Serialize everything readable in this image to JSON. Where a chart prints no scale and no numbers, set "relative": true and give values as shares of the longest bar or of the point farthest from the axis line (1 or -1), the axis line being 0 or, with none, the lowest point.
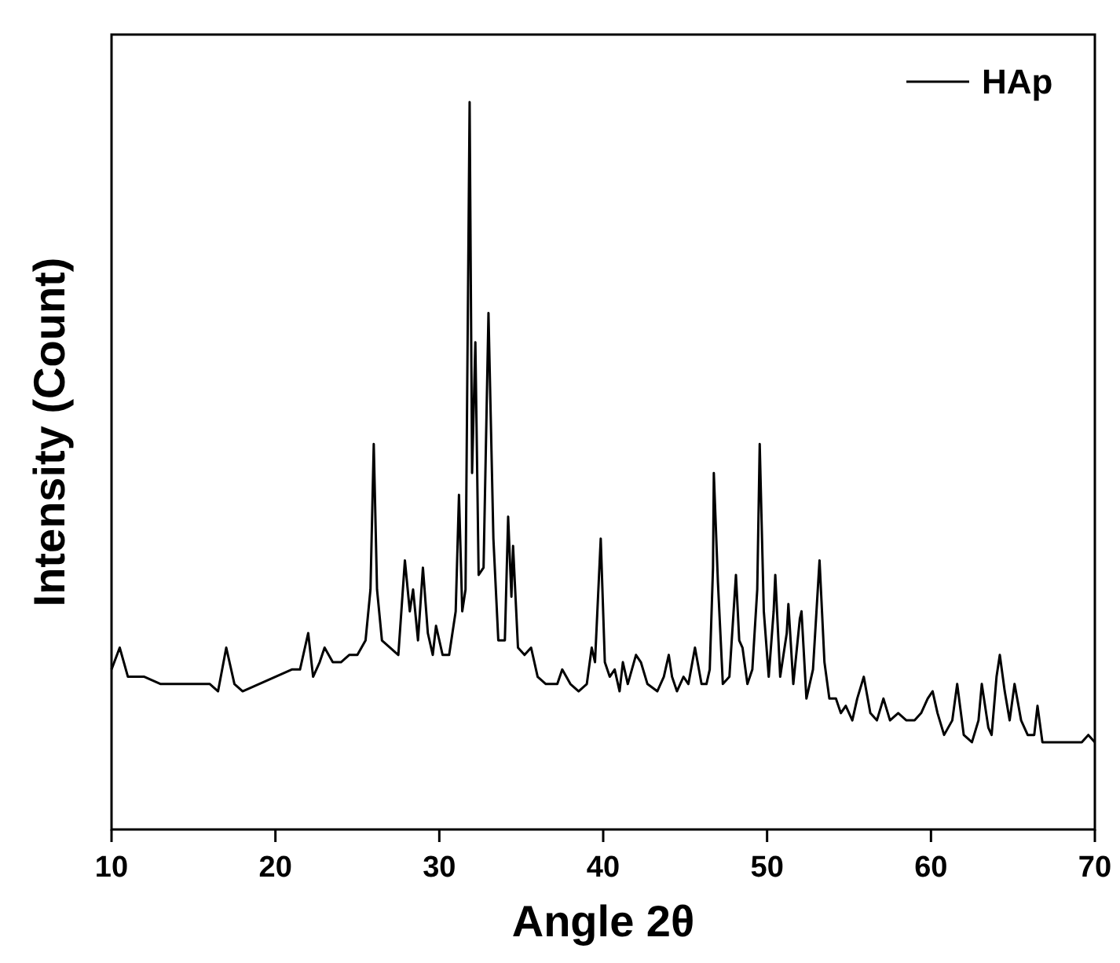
{
  "chart_data": {
    "type": "line",
    "xlabel": "Angle 2θ",
    "ylabel": "Intensity (Count)",
    "relative": true,
    "xlim": [
      10,
      70
    ],
    "xticks": [
      10,
      20,
      30,
      40,
      50,
      60,
      70
    ],
    "legend": "top right",
    "grid": false,
    "series": [
      {
        "name": "HAp",
        "color": "#000000",
        "x": [
          10.0,
          10.5,
          11.0,
          12,
          13,
          14,
          15,
          16,
          16.5,
          17,
          17.5,
          18,
          19,
          20,
          21,
          21.5,
          22,
          22.3,
          22.7,
          23,
          23.5,
          24,
          24.5,
          25,
          25.5,
          25.8,
          26.0,
          26.2,
          26.5,
          27,
          27.5,
          27.9,
          28.2,
          28.4,
          28.7,
          29.0,
          29.3,
          29.6,
          29.8,
          30.2,
          30.6,
          31.0,
          31.2,
          31.4,
          31.6,
          31.85,
          32.0,
          32.2,
          32.4,
          32.7,
          33.0,
          33.3,
          33.6,
          34.0,
          34.2,
          34.4,
          34.5,
          34.8,
          35.2,
          35.6,
          36.0,
          36.5,
          37.2,
          37.5,
          38,
          38.5,
          39,
          39.3,
          39.5,
          39.85,
          40.1,
          40.4,
          40.7,
          41.0,
          41.2,
          41.5,
          42.0,
          42.3,
          42.7,
          43.3,
          43.7,
          44.0,
          44.2,
          44.5,
          44.9,
          45.2,
          45.6,
          46.0,
          46.3,
          46.5,
          46.7,
          46.75,
          47.0,
          47.3,
          47.7,
          48.1,
          48.3,
          48.5,
          48.8,
          49.1,
          49.4,
          49.55,
          49.8,
          50.1,
          50.4,
          50.5,
          50.8,
          51.2,
          51.3,
          51.6,
          52.0,
          52.1,
          52.4,
          52.8,
          53.2,
          53.5,
          53.8,
          54.2,
          54.5,
          54.8,
          55.2,
          55.5,
          55.9,
          56.3,
          56.7,
          57.1,
          57.5,
          58,
          58.5,
          59,
          59.4,
          59.8,
          60.1,
          60.4,
          60.8,
          61.3,
          61.6,
          62,
          62.5,
          62.9,
          63.1,
          63.5,
          63.7,
          64.0,
          64.2,
          64.5,
          64.8,
          65.1,
          65.5,
          65.9,
          66.3,
          66.5,
          66.8,
          67.3,
          68,
          68.7,
          69.2,
          69.6,
          70
        ],
        "values": [
          0.22,
          0.25,
          0.21,
          0.21,
          0.2,
          0.2,
          0.2,
          0.2,
          0.19,
          0.25,
          0.2,
          0.19,
          0.2,
          0.21,
          0.22,
          0.22,
          0.27,
          0.21,
          0.23,
          0.25,
          0.23,
          0.23,
          0.24,
          0.24,
          0.26,
          0.33,
          0.53,
          0.33,
          0.26,
          0.25,
          0.24,
          0.37,
          0.3,
          0.33,
          0.26,
          0.36,
          0.27,
          0.24,
          0.28,
          0.24,
          0.24,
          0.3,
          0.46,
          0.3,
          0.33,
          1.0,
          0.49,
          0.67,
          0.35,
          0.36,
          0.71,
          0.4,
          0.26,
          0.26,
          0.43,
          0.32,
          0.39,
          0.25,
          0.24,
          0.25,
          0.21,
          0.2,
          0.2,
          0.22,
          0.2,
          0.19,
          0.2,
          0.25,
          0.23,
          0.4,
          0.23,
          0.21,
          0.22,
          0.19,
          0.23,
          0.2,
          0.24,
          0.23,
          0.2,
          0.19,
          0.21,
          0.24,
          0.21,
          0.19,
          0.21,
          0.2,
          0.25,
          0.2,
          0.2,
          0.22,
          0.36,
          0.49,
          0.34,
          0.2,
          0.21,
          0.35,
          0.26,
          0.25,
          0.2,
          0.22,
          0.33,
          0.53,
          0.3,
          0.21,
          0.3,
          0.35,
          0.21,
          0.27,
          0.31,
          0.2,
          0.29,
          0.3,
          0.18,
          0.22,
          0.37,
          0.23,
          0.18,
          0.18,
          0.16,
          0.17,
          0.15,
          0.18,
          0.21,
          0.16,
          0.15,
          0.18,
          0.15,
          0.16,
          0.15,
          0.15,
          0.16,
          0.18,
          0.19,
          0.16,
          0.13,
          0.15,
          0.2,
          0.13,
          0.12,
          0.15,
          0.2,
          0.14,
          0.13,
          0.21,
          0.24,
          0.19,
          0.15,
          0.2,
          0.15,
          0.13,
          0.13,
          0.17,
          0.12,
          0.12,
          0.12,
          0.12,
          0.12,
          0.13,
          0.12
        ]
      }
    ]
  }
}
